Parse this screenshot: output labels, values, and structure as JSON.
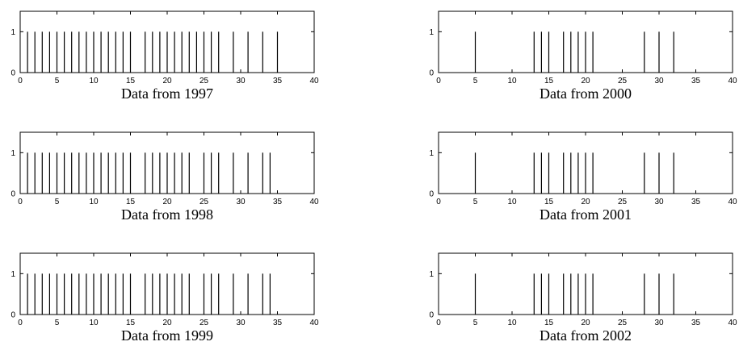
{
  "chart_data": [
    {
      "type": "bar",
      "title": "Data from 1997",
      "xlim": [
        0,
        40
      ],
      "ylim": [
        0,
        1.5
      ],
      "x_ticks": [
        "0",
        "5",
        "10",
        "15",
        "20",
        "25",
        "30",
        "35",
        "40"
      ],
      "y_ticks": [
        "0",
        "1"
      ],
      "grid": false,
      "x": [
        1,
        2,
        3,
        4,
        5,
        6,
        7,
        8,
        9,
        10,
        11,
        12,
        13,
        14,
        15,
        17,
        18,
        19,
        20,
        21,
        22,
        23,
        24,
        25,
        26,
        27,
        29,
        31,
        33,
        35
      ],
      "values": [
        1,
        1,
        1,
        1,
        1,
        1,
        1,
        1,
        1,
        1,
        1,
        1,
        1,
        1,
        1,
        1,
        1,
        1,
        1,
        1,
        1,
        1,
        1,
        1,
        1,
        1,
        1,
        1,
        1,
        1
      ]
    },
    {
      "type": "bar",
      "title": "Data from 1998",
      "xlim": [
        0,
        40
      ],
      "ylim": [
        0,
        1.5
      ],
      "x_ticks": [
        "0",
        "5",
        "10",
        "15",
        "20",
        "25",
        "30",
        "35",
        "40"
      ],
      "y_ticks": [
        "0",
        "1"
      ],
      "grid": false,
      "x": [
        1,
        2,
        3,
        4,
        5,
        6,
        7,
        8,
        9,
        10,
        11,
        12,
        13,
        14,
        15,
        17,
        18,
        19,
        20,
        21,
        22,
        23,
        25,
        26,
        27,
        29,
        31,
        33,
        34
      ],
      "values": [
        1,
        1,
        1,
        1,
        1,
        1,
        1,
        1,
        1,
        1,
        1,
        1,
        1,
        1,
        1,
        1,
        1,
        1,
        1,
        1,
        1,
        1,
        1,
        1,
        1,
        1,
        1,
        1,
        1
      ]
    },
    {
      "type": "bar",
      "title": "Data from 1999",
      "xlim": [
        0,
        40
      ],
      "ylim": [
        0,
        1.5
      ],
      "x_ticks": [
        "0",
        "5",
        "10",
        "15",
        "20",
        "25",
        "30",
        "35",
        "40"
      ],
      "y_ticks": [
        "0",
        "1"
      ],
      "grid": false,
      "x": [
        1,
        2,
        3,
        4,
        5,
        6,
        7,
        8,
        9,
        10,
        11,
        12,
        13,
        14,
        15,
        17,
        18,
        19,
        20,
        21,
        22,
        23,
        25,
        26,
        27,
        29,
        31,
        33,
        34
      ],
      "values": [
        1,
        1,
        1,
        1,
        1,
        1,
        1,
        1,
        1,
        1,
        1,
        1,
        1,
        1,
        1,
        1,
        1,
        1,
        1,
        1,
        1,
        1,
        1,
        1,
        1,
        1,
        1,
        1,
        1
      ]
    },
    {
      "type": "bar",
      "title": "Data from 2000",
      "xlim": [
        0,
        40
      ],
      "ylim": [
        0,
        1.5
      ],
      "x_ticks": [
        "0",
        "5",
        "10",
        "15",
        "20",
        "25",
        "30",
        "35",
        "40"
      ],
      "y_ticks": [
        "0",
        "1"
      ],
      "grid": false,
      "x": [
        5,
        13,
        14,
        15,
        17,
        18,
        19,
        20,
        21,
        28,
        30,
        32
      ],
      "values": [
        1,
        1,
        1,
        1,
        1,
        1,
        1,
        1,
        1,
        1,
        1,
        1
      ]
    },
    {
      "type": "bar",
      "title": "Data from 2001",
      "xlim": [
        0,
        40
      ],
      "ylim": [
        0,
        1.5
      ],
      "x_ticks": [
        "0",
        "5",
        "10",
        "15",
        "20",
        "25",
        "30",
        "35",
        "40"
      ],
      "y_ticks": [
        "0",
        "1"
      ],
      "grid": false,
      "x": [
        5,
        13,
        14,
        15,
        17,
        18,
        19,
        20,
        21,
        28,
        30,
        32
      ],
      "values": [
        1,
        1,
        1,
        1,
        1,
        1,
        1,
        1,
        1,
        1,
        1,
        1
      ]
    },
    {
      "type": "bar",
      "title": "Data from 2002",
      "xlim": [
        0,
        40
      ],
      "ylim": [
        0,
        1.5
      ],
      "x_ticks": [
        "0",
        "5",
        "10",
        "15",
        "20",
        "25",
        "30",
        "35",
        "40"
      ],
      "y_ticks": [
        "0",
        "1"
      ],
      "grid": false,
      "x": [
        5,
        13,
        14,
        15,
        17,
        18,
        19,
        20,
        21,
        28,
        30,
        32
      ],
      "values": [
        1,
        1,
        1,
        1,
        1,
        1,
        1,
        1,
        1,
        1,
        1,
        1
      ]
    }
  ]
}
